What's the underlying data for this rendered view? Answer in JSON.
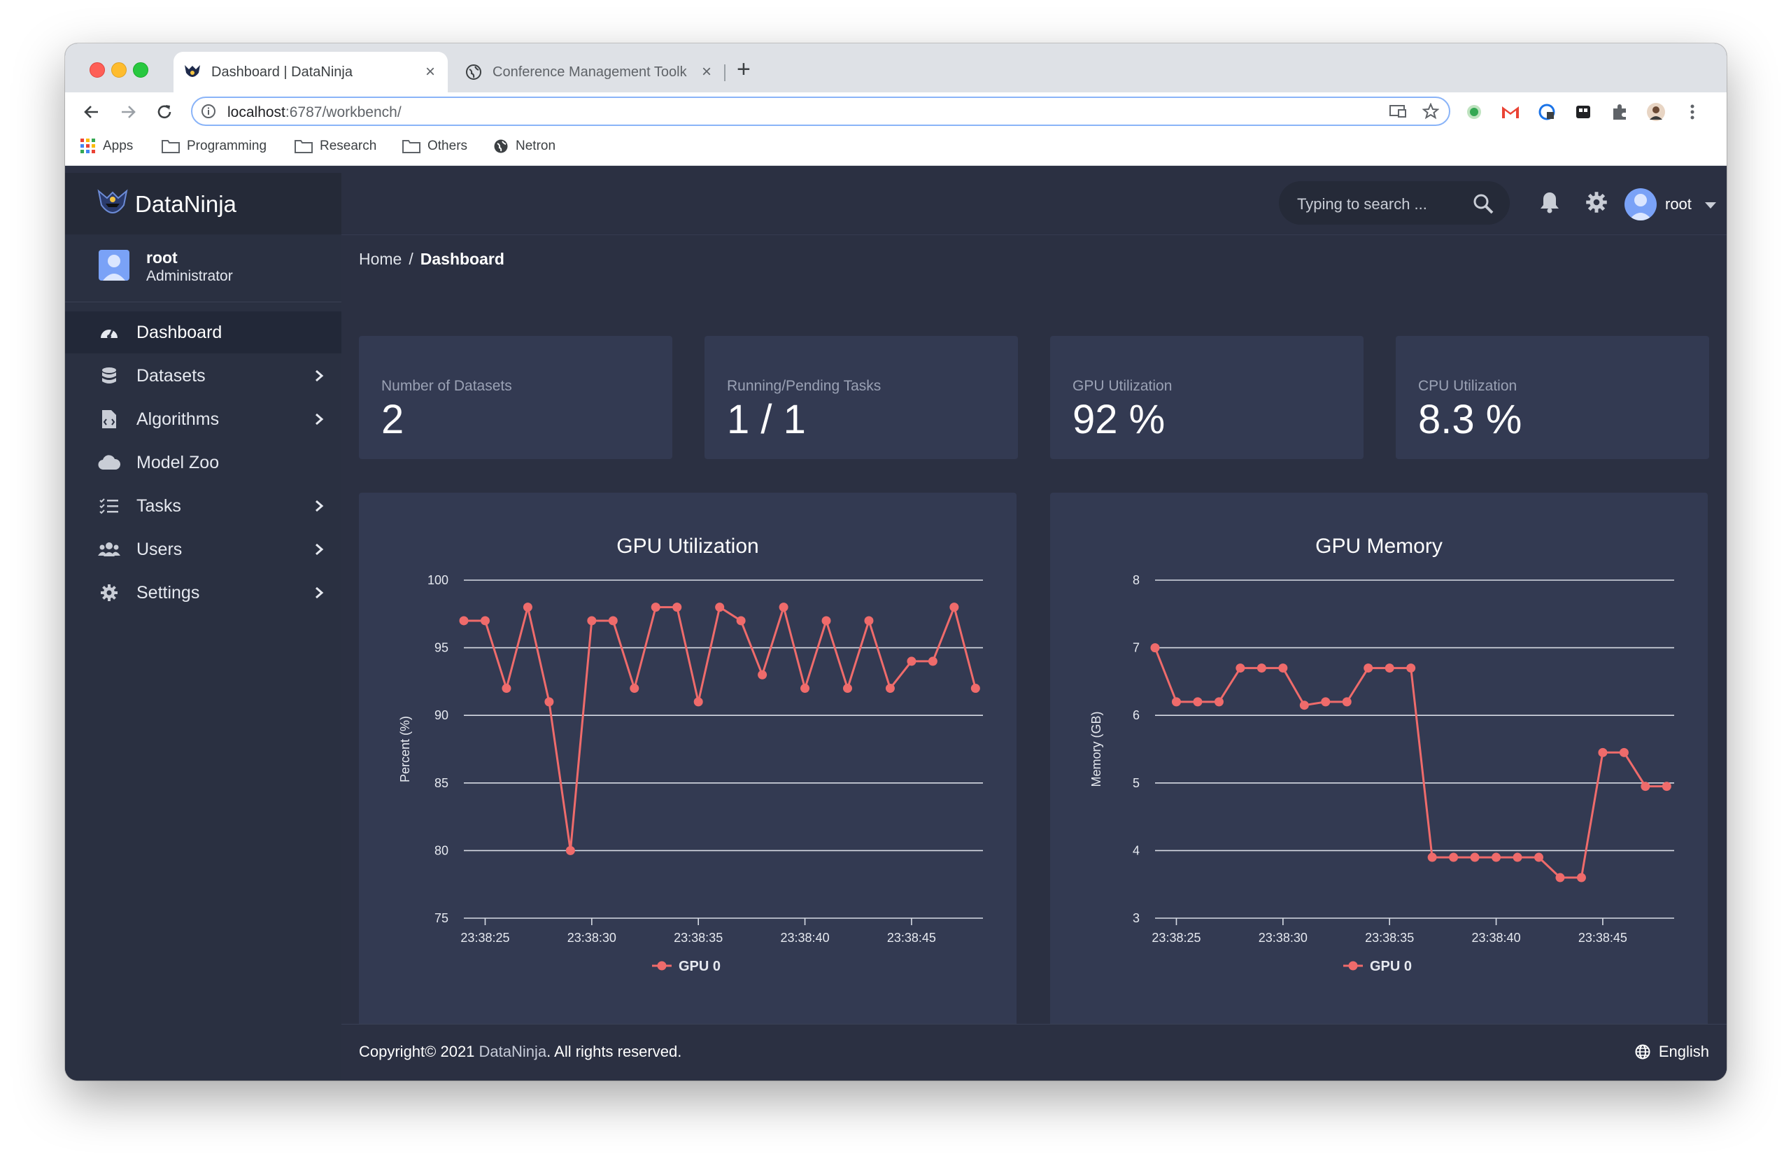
{
  "browser": {
    "tabs": [
      {
        "title": "Dashboard | DataNinja",
        "active": true
      },
      {
        "title": "Conference Management Toolk",
        "active": false
      }
    ],
    "url_host": "localhost",
    "url_rest": ":6787/workbench/",
    "bookmarks": [
      "Apps",
      "Programming",
      "Research",
      "Others",
      "Netron"
    ]
  },
  "app": {
    "brand": "DataNinja",
    "user": {
      "name": "root",
      "role": "Administrator"
    },
    "menu": [
      {
        "label": "Dashboard",
        "icon": "dashboard-icon",
        "active": true,
        "chevron": false
      },
      {
        "label": "Datasets",
        "icon": "database-icon",
        "active": false,
        "chevron": true
      },
      {
        "label": "Algorithms",
        "icon": "file-code-icon",
        "active": false,
        "chevron": true
      },
      {
        "label": "Model Zoo",
        "icon": "cloud-icon",
        "active": false,
        "chevron": false
      },
      {
        "label": "Tasks",
        "icon": "tasks-icon",
        "active": false,
        "chevron": true
      },
      {
        "label": "Users",
        "icon": "users-icon",
        "active": false,
        "chevron": true
      },
      {
        "label": "Settings",
        "icon": "gear-icon",
        "active": false,
        "chevron": true
      }
    ],
    "search_placeholder": "Typing to search ...",
    "top_user": "root",
    "breadcrumb": {
      "home": "Home",
      "sep": "/",
      "current": "Dashboard"
    },
    "stats": [
      {
        "label": "Number of Datasets",
        "value": "2"
      },
      {
        "label": "Running/Pending Tasks",
        "value": "1 / 1"
      },
      {
        "label": "GPU Utilization",
        "value": "92 %"
      },
      {
        "label": "CPU Utilization",
        "value": "8.3 %"
      }
    ],
    "footer": {
      "copyright": "Copyright© 2021 ",
      "brand": "DataNinja",
      "rights": ". All rights reserved.",
      "language": "English"
    },
    "colors": {
      "accent": "#ef6b6b",
      "bg": "#2b3042",
      "card": "#333a52"
    }
  },
  "chart_data": [
    {
      "type": "line",
      "title": "GPU Utilization",
      "ylabel": "Percent (%)",
      "ylim": [
        75,
        100
      ],
      "yticks": [
        75,
        80,
        85,
        90,
        95,
        100
      ],
      "x_start": "23:38:24",
      "xticks": [
        "23:38:25",
        "23:38:30",
        "23:38:35",
        "23:38:40",
        "23:38:45"
      ],
      "legend": "bottom",
      "series": [
        {
          "name": "GPU 0",
          "values": [
            97,
            97,
            92,
            98,
            91,
            80,
            97,
            97,
            92,
            98,
            98,
            91,
            98,
            97,
            93,
            98,
            92,
            97,
            92,
            97,
            92,
            94,
            94,
            98,
            92
          ]
        }
      ]
    },
    {
      "type": "line",
      "title": "GPU Memory",
      "ylabel": "Memory (GB)",
      "ylim": [
        3,
        8
      ],
      "yticks": [
        3,
        4,
        5,
        6,
        7,
        8
      ],
      "x_start": "23:38:24",
      "xticks": [
        "23:38:25",
        "23:38:30",
        "23:38:35",
        "23:38:40",
        "23:38:45"
      ],
      "legend": "bottom",
      "series": [
        {
          "name": "GPU 0",
          "values": [
            7.0,
            6.2,
            6.2,
            6.2,
            6.7,
            6.7,
            6.7,
            6.15,
            6.2,
            6.2,
            6.7,
            6.7,
            6.7,
            3.9,
            3.9,
            3.9,
            3.9,
            3.9,
            3.9,
            3.6,
            3.6,
            5.45,
            5.45,
            4.95,
            4.95
          ]
        }
      ]
    }
  ]
}
